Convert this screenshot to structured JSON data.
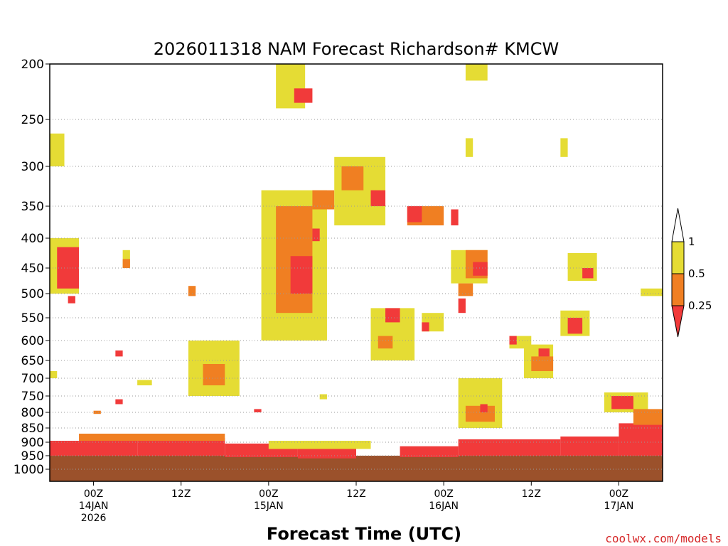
{
  "chart_data": {
    "type": "heatmap",
    "title": "2026011318 NAM Forecast Richardson# KMCW",
    "xlabel": "Forecast Time (UTC)",
    "ylabel": "",
    "y_axis": "pressure (hPa), inverted",
    "y_ticks": [
      200,
      250,
      300,
      350,
      400,
      450,
      500,
      550,
      600,
      650,
      700,
      750,
      800,
      850,
      900,
      950,
      1000
    ],
    "x_ticks": [
      {
        "hour": 6,
        "line1": "00Z",
        "line2": "14JAN",
        "line3": "2026"
      },
      {
        "hour": 18,
        "line1": "12Z",
        "line2": "",
        "line3": ""
      },
      {
        "hour": 30,
        "line1": "00Z",
        "line2": "15JAN",
        "line3": ""
      },
      {
        "hour": 42,
        "line1": "12Z",
        "line2": "",
        "line3": ""
      },
      {
        "hour": 54,
        "line1": "00Z",
        "line2": "16JAN",
        "line3": ""
      },
      {
        "hour": 66,
        "line1": "12Z",
        "line2": "",
        "line3": ""
      },
      {
        "hour": 78,
        "line1": "00Z",
        "line2": "17JAN",
        "line3": ""
      }
    ],
    "xlim_hours": [
      0,
      84
    ],
    "gridlines": "dotted at pressure ticks",
    "colorbar": {
      "labels": [
        "1",
        "0.5",
        "0.25"
      ],
      "colors": {
        "le_0.25": "#f13a3a",
        "0.25_0.5": "#f07f22",
        "0.5_1": "#e5dc34",
        "ground": "#9b512b"
      }
    },
    "regions": [
      {
        "cat": "ground",
        "h0": 0,
        "h1": 84,
        "p0": 950,
        "p1": 1030
      },
      {
        "cat": "lt025",
        "h0": 0,
        "h1": 12,
        "p0": 895,
        "p1": 950
      },
      {
        "cat": "lt025",
        "h0": 12,
        "h1": 24,
        "p0": 885,
        "p1": 950
      },
      {
        "cat": "lt025",
        "h0": 24,
        "h1": 34,
        "p0": 905,
        "p1": 955
      },
      {
        "cat": "lt025",
        "h0": 34,
        "h1": 42,
        "p0": 925,
        "p1": 960
      },
      {
        "cat": "lt025",
        "h0": 48,
        "h1": 56,
        "p0": 915,
        "p1": 955
      },
      {
        "cat": "lt025",
        "h0": 56,
        "h1": 70,
        "p0": 890,
        "p1": 950
      },
      {
        "cat": "lt025",
        "h0": 70,
        "h1": 78,
        "p0": 880,
        "p1": 950
      },
      {
        "cat": "lt025",
        "h0": 78,
        "h1": 84,
        "p0": 835,
        "p1": 950
      },
      {
        "cat": "r025_05",
        "h0": 4,
        "h1": 24,
        "p0": 870,
        "p1": 895
      },
      {
        "cat": "r05_1",
        "h0": 30,
        "h1": 44,
        "p0": 895,
        "p1": 925
      },
      {
        "cat": "r05_1",
        "h0": 31,
        "h1": 35,
        "p0": 200,
        "p1": 240
      },
      {
        "cat": "lt025",
        "h0": 33.5,
        "h1": 36,
        "p0": 222,
        "p1": 235
      },
      {
        "cat": "r05_1",
        "h0": 0,
        "h1": 4,
        "p0": 400,
        "p1": 500
      },
      {
        "cat": "lt025",
        "h0": 1,
        "h1": 4,
        "p0": 415,
        "p1": 490
      },
      {
        "cat": "r05_1",
        "h0": 0,
        "h1": 2,
        "p0": 265,
        "p1": 300
      },
      {
        "cat": "r05_1",
        "h0": 29,
        "h1": 38,
        "p0": 330,
        "p1": 600
      },
      {
        "cat": "r025_05",
        "h0": 31,
        "h1": 36,
        "p0": 350,
        "p1": 540
      },
      {
        "cat": "lt025",
        "h0": 33,
        "h1": 36,
        "p0": 430,
        "p1": 500
      },
      {
        "cat": "r025_05",
        "h0": 36,
        "h1": 39,
        "p0": 330,
        "p1": 355
      },
      {
        "cat": "r05_1",
        "h0": 39,
        "h1": 46,
        "p0": 290,
        "p1": 380
      },
      {
        "cat": "r025_05",
        "h0": 40,
        "h1": 43,
        "p0": 300,
        "p1": 330
      },
      {
        "cat": "lt025",
        "h0": 44,
        "h1": 46,
        "p0": 330,
        "p1": 350
      },
      {
        "cat": "r025_05",
        "h0": 49,
        "h1": 54,
        "p0": 350,
        "p1": 380
      },
      {
        "cat": "lt025",
        "h0": 49,
        "h1": 51,
        "p0": 350,
        "p1": 375
      },
      {
        "cat": "r05_1",
        "h0": 44,
        "h1": 50,
        "p0": 530,
        "p1": 650
      },
      {
        "cat": "r025_05",
        "h0": 45,
        "h1": 47,
        "p0": 590,
        "p1": 620
      },
      {
        "cat": "lt025",
        "h0": 46,
        "h1": 48,
        "p0": 530,
        "p1": 560
      },
      {
        "cat": "r05_1",
        "h0": 55,
        "h1": 60,
        "p0": 420,
        "p1": 480
      },
      {
        "cat": "r025_05",
        "h0": 57,
        "h1": 60,
        "p0": 420,
        "p1": 470
      },
      {
        "cat": "lt025",
        "h0": 58,
        "h1": 60,
        "p0": 440,
        "p1": 465
      },
      {
        "cat": "r05_1",
        "h0": 71,
        "h1": 75,
        "p0": 425,
        "p1": 475
      },
      {
        "cat": "lt025",
        "h0": 73,
        "h1": 74.5,
        "p0": 450,
        "p1": 470
      },
      {
        "cat": "r05_1",
        "h0": 70,
        "h1": 74,
        "p0": 535,
        "p1": 590
      },
      {
        "cat": "lt025",
        "h0": 71,
        "h1": 73,
        "p0": 550,
        "p1": 585
      },
      {
        "cat": "r05_1",
        "h0": 19,
        "h1": 26,
        "p0": 600,
        "p1": 750
      },
      {
        "cat": "r025_05",
        "h0": 21,
        "h1": 24,
        "p0": 660,
        "p1": 720
      },
      {
        "cat": "r05_1",
        "h0": 65,
        "h1": 69,
        "p0": 610,
        "p1": 700
      },
      {
        "cat": "r025_05",
        "h0": 66,
        "h1": 69,
        "p0": 640,
        "p1": 680
      },
      {
        "cat": "lt025",
        "h0": 67,
        "h1": 68.5,
        "p0": 620,
        "p1": 640
      },
      {
        "cat": "r05_1",
        "h0": 76,
        "h1": 82,
        "p0": 740,
        "p1": 800
      },
      {
        "cat": "lt025",
        "h0": 77,
        "h1": 80,
        "p0": 750,
        "p1": 790
      },
      {
        "cat": "r025_05",
        "h0": 80,
        "h1": 84,
        "p0": 790,
        "p1": 840
      },
      {
        "cat": "r05_1",
        "h0": 56,
        "h1": 62,
        "p0": 700,
        "p1": 850
      },
      {
        "cat": "r025_05",
        "h0": 57,
        "h1": 61,
        "p0": 780,
        "p1": 830
      },
      {
        "cat": "lt025",
        "h0": 59,
        "h1": 60,
        "p0": 775,
        "p1": 800
      },
      {
        "cat": "r05_1",
        "h0": 10,
        "h1": 11,
        "p0": 420,
        "p1": 450
      },
      {
        "cat": "r025_05",
        "h0": 10,
        "h1": 11,
        "p0": 435,
        "p1": 450
      },
      {
        "cat": "r025_05",
        "h0": 19,
        "h1": 20,
        "p0": 485,
        "p1": 505
      },
      {
        "cat": "r05_1",
        "h0": 57,
        "h1": 60,
        "p0": 200,
        "p1": 215
      },
      {
        "cat": "r05_1",
        "h0": 57,
        "h1": 58,
        "p0": 270,
        "p1": 290
      },
      {
        "cat": "r05_1",
        "h0": 70,
        "h1": 71,
        "p0": 270,
        "p1": 290
      },
      {
        "cat": "r05_1",
        "h0": 81,
        "h1": 84,
        "p0": 490,
        "p1": 505
      },
      {
        "cat": "r025_05",
        "h0": 56,
        "h1": 58,
        "p0": 480,
        "p1": 505
      },
      {
        "cat": "lt025",
        "h0": 56,
        "h1": 57,
        "p0": 510,
        "p1": 540
      },
      {
        "cat": "r05_1",
        "h0": 51,
        "h1": 54,
        "p0": 540,
        "p1": 580
      },
      {
        "cat": "lt025",
        "h0": 51,
        "h1": 52,
        "p0": 560,
        "p1": 580
      },
      {
        "cat": "r05_1",
        "h0": 63,
        "h1": 66,
        "p0": 590,
        "p1": 620
      },
      {
        "cat": "lt025",
        "h0": 63,
        "h1": 64,
        "p0": 590,
        "p1": 610
      },
      {
        "cat": "lt025",
        "h0": 55,
        "h1": 56,
        "p0": 355,
        "p1": 380
      },
      {
        "cat": "lt025",
        "h0": 36,
        "h1": 37,
        "p0": 385,
        "p1": 405
      },
      {
        "cat": "lt025",
        "h0": 2.5,
        "h1": 3.5,
        "p0": 505,
        "p1": 520
      },
      {
        "cat": "lt025",
        "h0": 9,
        "h1": 10,
        "p0": 625,
        "p1": 640
      },
      {
        "cat": "lt025",
        "h0": 9,
        "h1": 10,
        "p0": 760,
        "p1": 775
      },
      {
        "cat": "r05_1",
        "h0": 0,
        "h1": 1,
        "p0": 680,
        "p1": 700
      },
      {
        "cat": "r05_1",
        "h0": 12,
        "h1": 14,
        "p0": 705,
        "p1": 720
      },
      {
        "cat": "r05_1",
        "h0": 37,
        "h1": 38,
        "p0": 745,
        "p1": 760
      },
      {
        "cat": "r025_05",
        "h0": 6,
        "h1": 7,
        "p0": 795,
        "p1": 805
      },
      {
        "cat": "lt025",
        "h0": 28,
        "h1": 29,
        "p0": 790,
        "p1": 800
      }
    ]
  },
  "footer": {
    "credit": "coolwx.com/models"
  }
}
